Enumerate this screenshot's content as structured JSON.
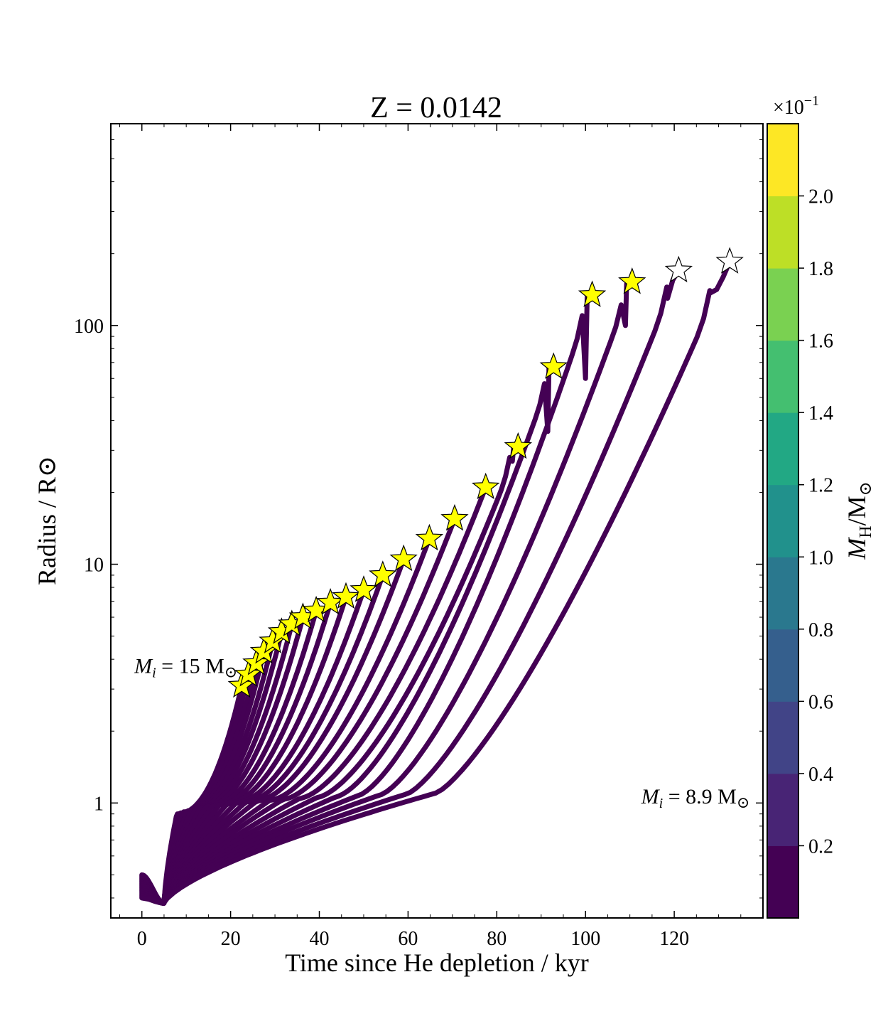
{
  "chart_data": {
    "type": "line",
    "title": "Z = 0.0142",
    "xlabel": "Time since He depletion / kyr",
    "ylabel": "Radius / R⊙",
    "xlim": [
      -7,
      140
    ],
    "ylim": [
      0.33,
      700
    ],
    "yscale": "log",
    "x_ticks": [
      0,
      20,
      40,
      60,
      80,
      100,
      120
    ],
    "x_tick_labels": [
      "0",
      "20",
      "40",
      "60",
      "80",
      "100",
      "120"
    ],
    "y_ticks": [
      1,
      10,
      100
    ],
    "y_tick_labels": [
      "1",
      "10",
      "100"
    ],
    "line_color": "#440154",
    "annotations": [
      {
        "text": "Mi = 15 M⊙",
        "mass": "15",
        "x": 22.5,
        "y": 3.8,
        "anchor": "end"
      },
      {
        "text": "Mi = 8.9 M⊙",
        "mass": "8.9",
        "x": 137,
        "y": 1.05,
        "anchor": "end"
      }
    ],
    "series": [
      {
        "name": "track-1",
        "t_end": 22.5,
        "r_end": 3.1,
        "bumps": [],
        "star": "filled"
      },
      {
        "name": "track-2",
        "t_end": 24.0,
        "r_end": 3.45,
        "bumps": [],
        "star": "filled"
      },
      {
        "name": "track-3",
        "t_end": 25.8,
        "r_end": 3.85,
        "bumps": [],
        "star": "filled"
      },
      {
        "name": "track-4",
        "t_end": 27.5,
        "r_end": 4.3,
        "bumps": [],
        "star": "filled"
      },
      {
        "name": "track-5",
        "t_end": 29.5,
        "r_end": 4.75,
        "bumps": [],
        "star": "filled"
      },
      {
        "name": "track-6",
        "t_end": 31.5,
        "r_end": 5.2,
        "bumps": [],
        "star": "filled"
      },
      {
        "name": "track-7",
        "t_end": 33.8,
        "r_end": 5.6,
        "bumps": [],
        "star": "filled"
      },
      {
        "name": "track-8",
        "t_end": 36.3,
        "r_end": 6.0,
        "bumps": [],
        "star": "filled"
      },
      {
        "name": "track-9",
        "t_end": 39.3,
        "r_end": 6.4,
        "bumps": [],
        "star": "filled"
      },
      {
        "name": "track-10",
        "t_end": 42.5,
        "r_end": 6.9,
        "bumps": [],
        "star": "filled"
      },
      {
        "name": "track-11",
        "t_end": 46.0,
        "r_end": 7.3,
        "bumps": [],
        "star": "filled"
      },
      {
        "name": "track-12",
        "t_end": 50.0,
        "r_end": 7.8,
        "bumps": [],
        "star": "filled"
      },
      {
        "name": "track-13",
        "t_end": 54.3,
        "r_end": 9.0,
        "bumps": [],
        "star": "filled"
      },
      {
        "name": "track-14",
        "t_end": 59.0,
        "r_end": 10.5,
        "bumps": [],
        "star": "filled"
      },
      {
        "name": "track-15",
        "t_end": 64.8,
        "r_end": 12.8,
        "bumps": [],
        "star": "filled"
      },
      {
        "name": "track-16",
        "t_end": 70.5,
        "r_end": 15.5,
        "bumps": [],
        "star": "filled"
      },
      {
        "name": "track-17",
        "t_end": 77.5,
        "r_end": 21.0,
        "bumps": [],
        "star": "filled"
      },
      {
        "name": "track-18",
        "t_end": 84.8,
        "r_end": 31.0,
        "bumps": [
          [
            83.5,
            27
          ]
        ],
        "star": "filled"
      },
      {
        "name": "track-19",
        "t_end": 92.8,
        "r_end": 67.0,
        "bumps": [
          [
            91.5,
            36
          ]
        ],
        "star": "filled"
      },
      {
        "name": "track-20",
        "t_end": 101.5,
        "r_end": 134.0,
        "bumps": [
          [
            100.0,
            60
          ]
        ],
        "star": "filled"
      },
      {
        "name": "track-21",
        "t_end": 110.5,
        "r_end": 152.0,
        "bumps": [
          [
            109.0,
            100
          ]
        ],
        "star": "filled"
      },
      {
        "name": "track-22",
        "t_end": 121.0,
        "r_end": 170.0,
        "bumps": [
          [
            118.5,
            130
          ]
        ],
        "star": "open"
      },
      {
        "name": "track-23",
        "t_end": 132.5,
        "r_end": 185.0,
        "bumps": [
          [
            128.0,
            140
          ]
        ],
        "star": "open"
      }
    ],
    "colorbar": {
      "label": "MH/M⊙",
      "label_main": "M",
      "label_sub": "H",
      "label_tail": "/M",
      "label_sun": "⊙",
      "multiplier": "×10",
      "multiplier_exp": "−1",
      "range": [
        0.0,
        2.2
      ],
      "ticks": [
        0.2,
        0.4,
        0.6,
        0.8,
        1.0,
        1.2,
        1.4,
        1.6,
        1.8,
        2.0
      ],
      "tick_labels": [
        "0.2",
        "0.4",
        "0.6",
        "0.8",
        "1.0",
        "1.2",
        "1.4",
        "1.6",
        "1.8",
        "2.0"
      ],
      "colors": [
        "#440154",
        "#482475",
        "#414487",
        "#355f8d",
        "#2a788e",
        "#21918c",
        "#22a884",
        "#44bf70",
        "#7ad151",
        "#bddf26",
        "#fde725"
      ]
    },
    "star_fill": "#ffff00"
  }
}
